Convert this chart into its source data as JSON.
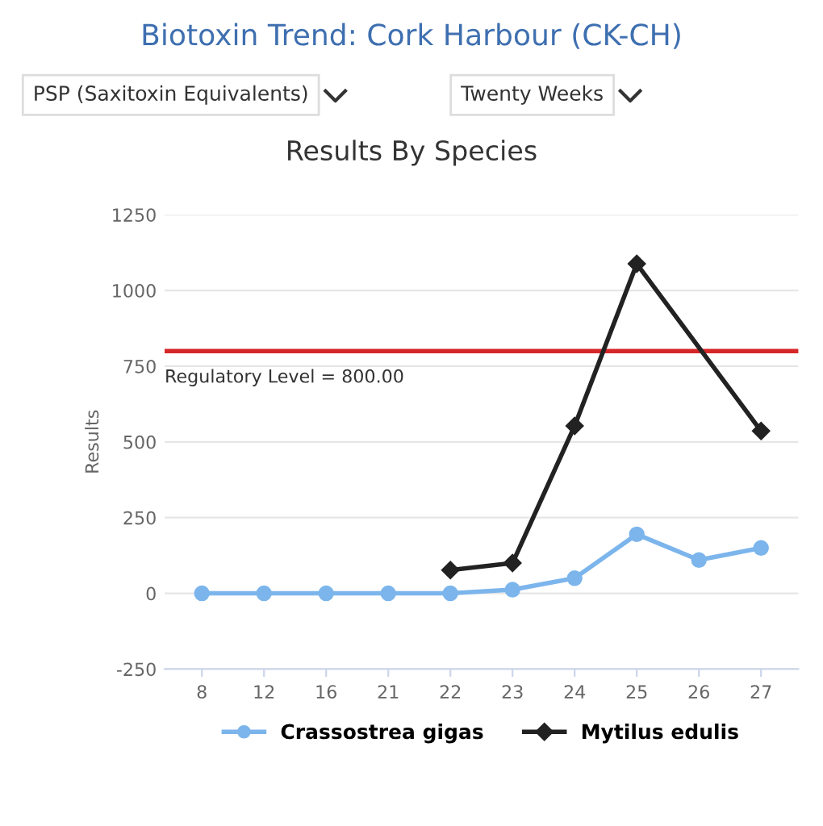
{
  "chart_data": {
    "type": "line",
    "title": "Biotoxin Trend: Cork Harbour (CK-CH)",
    "subtitle": "Results By Species",
    "ylabel": "Results",
    "annotations": [
      "PSP (Saxitoxin Equivalents)",
      "Twenty Weeks"
    ],
    "categories": [
      "8",
      "12",
      "16",
      "21",
      "22",
      "23",
      "24",
      "25",
      "26",
      "27"
    ],
    "series": [
      {
        "name": "Crassostrea gigas",
        "color": "#7cb5ec",
        "marker": "circle",
        "values": [
          0,
          0,
          0,
          0,
          0,
          12,
          50,
          195,
          110,
          150
        ]
      },
      {
        "name": "Mytilus edulis",
        "color": "#222222",
        "marker": "diamond",
        "values": [
          null,
          null,
          null,
          null,
          77,
          100,
          553,
          1088,
          null,
          536
        ]
      }
    ],
    "ylim": [
      -250,
      1250
    ],
    "yticks": [
      -250,
      0,
      250,
      500,
      750,
      1000,
      1250
    ],
    "ref_lines": [
      {
        "axis": "y",
        "value": 800,
        "label": "Regulatory Level = 800.00",
        "color": "#d62728"
      }
    ],
    "grid": "y",
    "legend": "bottom"
  }
}
